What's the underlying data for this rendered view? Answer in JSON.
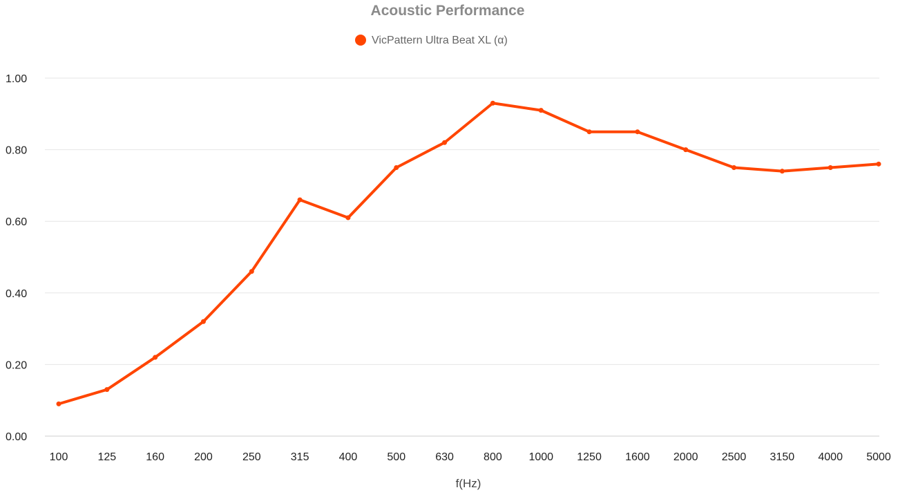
{
  "chart_data": {
    "type": "line",
    "title": "Acoustic Performance",
    "xlabel": "f(Hz)",
    "ylabel": "",
    "categories": [
      "100",
      "125",
      "160",
      "200",
      "250",
      "315",
      "400",
      "500",
      "630",
      "800",
      "1000",
      "1250",
      "1600",
      "2000",
      "2500",
      "3150",
      "4000",
      "5000"
    ],
    "series": [
      {
        "name": "VicPattern Ultra Beat XL (α)",
        "values": [
          0.09,
          0.13,
          0.22,
          0.32,
          0.46,
          0.66,
          0.61,
          0.75,
          0.82,
          0.93,
          0.91,
          0.85,
          0.85,
          0.8,
          0.75,
          0.74,
          0.75,
          0.76
        ]
      }
    ],
    "ylim": [
      0,
      1
    ],
    "yticks": [
      "0.00",
      "0.20",
      "0.40",
      "0.60",
      "0.80",
      "1.00"
    ],
    "grid": true,
    "legend_position": "top-center"
  },
  "colors": {
    "series": "#ff4500",
    "title": "#8a8a8a",
    "legend_text": "#666666",
    "grid": "#e6e6e6",
    "axis": "#cccccc"
  }
}
